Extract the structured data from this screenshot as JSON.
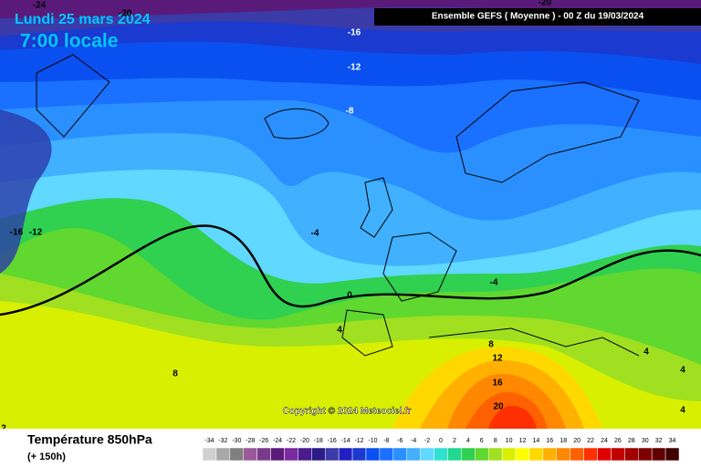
{
  "header": {
    "title": "Lundi 25 mars 2024",
    "time": "7:00 locale",
    "run": "Ensemble GEFS ( Moyenne ) - 00 Z du 19/03/2024"
  },
  "copyright": "Copyright © 2024 Meteociel.fr",
  "contour_labels": [
    "-24",
    "-20",
    "-20",
    "-16",
    "-12",
    "-8",
    "-4",
    "-16",
    "-12",
    "0",
    "-4",
    "4",
    "8",
    "4",
    "4",
    "4",
    "8",
    "12",
    "16",
    "20",
    "2"
  ],
  "legend": {
    "title": "Température 850hPa",
    "lead": "(+ 150h)",
    "labels": [
      -34,
      -32,
      -30,
      -28,
      -26,
      -24,
      -22,
      -20,
      -18,
      -16,
      -14,
      -12,
      -10,
      -8,
      -6,
      -4,
      -2,
      0,
      2,
      4,
      6,
      8,
      10,
      12,
      14,
      16,
      18,
      20,
      22,
      24,
      26,
      28,
      30,
      32,
      34
    ],
    "colors": [
      "#d0d0d0",
      "#a8a8a8",
      "#808080",
      "#9a5a9a",
      "#7a3a8a",
      "#5a1a7a",
      "#7a2aa0",
      "#4a1a90",
      "#2a1a8a",
      "#3a3aa8",
      "#2020c0",
      "#1a3ad0",
      "#0a50f0",
      "#1a70ff",
      "#2a90ff",
      "#40b0ff",
      "#60d8ff",
      "#30e0d0",
      "#20d890",
      "#30d050",
      "#60d830",
      "#a0e020",
      "#d8f000",
      "#ffff00",
      "#ffd800",
      "#ffb000",
      "#ff8800",
      "#ff6000",
      "#ff3000",
      "#e00000",
      "#c00000",
      "#a00000",
      "#800000",
      "#600000",
      "#400000"
    ]
  }
}
